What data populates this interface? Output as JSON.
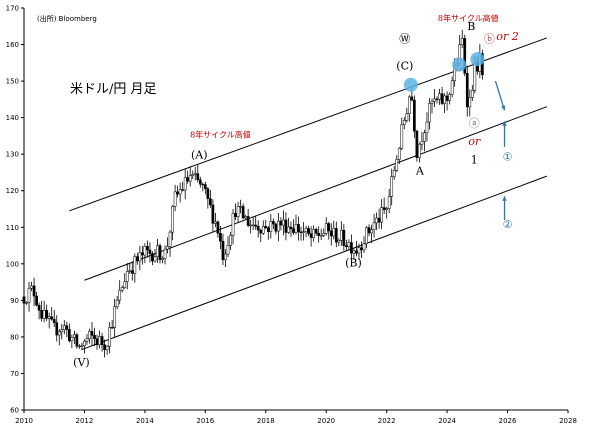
{
  "chart_data": {
    "type": "candlestick",
    "title": "米ドル/円 月足",
    "source": "(出所) Bloomberg",
    "x_range": [
      2010,
      2028
    ],
    "xticks": [
      2010,
      2012,
      2014,
      2016,
      2018,
      2020,
      2022,
      2024,
      2026,
      2028
    ],
    "xtick_labels": [
      "2010",
      "2012",
      "2014",
      "2016",
      "2018",
      "2020",
      "2022",
      "2024",
      "2026",
      "2028"
    ],
    "y_range": [
      60,
      170
    ],
    "yticks": [
      60,
      70,
      80,
      90,
      100,
      110,
      120,
      130,
      140,
      150,
      160,
      170
    ],
    "ytick_labels": [
      "60",
      "70",
      "80",
      "90",
      "100",
      "110",
      "120",
      "130",
      "140",
      "150",
      "160",
      "170"
    ],
    "grid": false,
    "price_anchors": [
      {
        "t": 2010.0,
        "v": 91
      },
      {
        "t": 2010.3,
        "v": 93
      },
      {
        "t": 2010.6,
        "v": 86
      },
      {
        "t": 2011.0,
        "v": 82
      },
      {
        "t": 2011.3,
        "v": 83
      },
      {
        "t": 2011.8,
        "v": 77
      },
      {
        "t": 2012.2,
        "v": 80
      },
      {
        "t": 2012.7,
        "v": 78
      },
      {
        "t": 2013.0,
        "v": 87
      },
      {
        "t": 2013.4,
        "v": 98
      },
      {
        "t": 2014.0,
        "v": 103
      },
      {
        "t": 2014.7,
        "v": 103
      },
      {
        "t": 2015.0,
        "v": 118
      },
      {
        "t": 2015.5,
        "v": 124
      },
      {
        "t": 2015.9,
        "v": 121
      },
      {
        "t": 2016.4,
        "v": 110
      },
      {
        "t": 2016.6,
        "v": 102
      },
      {
        "t": 2017.0,
        "v": 115
      },
      {
        "t": 2017.5,
        "v": 111
      },
      {
        "t": 2018.0,
        "v": 110
      },
      {
        "t": 2018.5,
        "v": 111
      },
      {
        "t": 2019.0,
        "v": 110
      },
      {
        "t": 2019.5,
        "v": 107
      },
      {
        "t": 2020.0,
        "v": 109
      },
      {
        "t": 2020.5,
        "v": 107
      },
      {
        "t": 2021.0,
        "v": 104
      },
      {
        "t": 2021.5,
        "v": 110
      },
      {
        "t": 2022.0,
        "v": 115
      },
      {
        "t": 2022.3,
        "v": 128
      },
      {
        "t": 2022.8,
        "v": 148
      },
      {
        "t": 2023.0,
        "v": 131
      },
      {
        "t": 2023.5,
        "v": 144
      },
      {
        "t": 2024.0,
        "v": 145
      },
      {
        "t": 2024.5,
        "v": 161
      },
      {
        "t": 2024.7,
        "v": 142
      },
      {
        "t": 2024.9,
        "v": 153
      },
      {
        "t": 2025.1,
        "v": 156
      },
      {
        "t": 2025.2,
        "v": 148
      }
    ],
    "channel_lines": [
      {
        "name": "upper",
        "points": [
          [
            2011.5,
            114.5
          ],
          [
            2027.3,
            161.8
          ]
        ]
      },
      {
        "name": "middle",
        "points": [
          [
            2012.0,
            95.5
          ],
          [
            2027.3,
            143
          ]
        ]
      },
      {
        "name": "lower",
        "points": [
          [
            2011.9,
            76.5
          ],
          [
            2027.3,
            124
          ]
        ]
      }
    ],
    "annotations": [
      {
        "text": "8年サイクル高値",
        "t": 2016.5,
        "v": 134.5,
        "color": "#c00000"
      },
      {
        "text": "8年サイクル高値",
        "t": 2024.7,
        "v": 166.5,
        "color": "#c00000"
      },
      {
        "text": "(A)",
        "t": 2015.8,
        "v": 128.8,
        "color": "#000000"
      },
      {
        "text": "(B)",
        "t": 2020.9,
        "v": 99.3,
        "color": "#000000"
      },
      {
        "text": "(C)",
        "t": 2022.6,
        "v": 153.2,
        "color": "#000000"
      },
      {
        "text": "(V)",
        "t": 2011.9,
        "v": 72,
        "color": "#000000"
      },
      {
        "text": "Ⓦ",
        "t": 2022.6,
        "v": 160.5,
        "color": "#000000"
      },
      {
        "text": "A",
        "t": 2023.1,
        "v": 124.4,
        "color": "#000000"
      },
      {
        "text": "B",
        "t": 2024.8,
        "v": 164,
        "color": "#000000"
      },
      {
        "text": "ⓑ",
        "t": 2025.4,
        "v": 160.5,
        "color": "#c0504d"
      },
      {
        "text": "or 2",
        "t": 2026.0,
        "v": 161.2,
        "color": "#c00000"
      },
      {
        "text": "ⓐ",
        "t": 2024.9,
        "v": 137.5,
        "color": "#7f7f7f"
      },
      {
        "text": "or",
        "t": 2024.9,
        "v": 132.5,
        "color": "#c00000"
      },
      {
        "text": "1",
        "t": 2024.9,
        "v": 127.5,
        "color": "#000000"
      },
      {
        "text": "①",
        "t": 2026.0,
        "v": 128.3,
        "color": "#2e75b6"
      },
      {
        "text": "②",
        "t": 2026.0,
        "v": 109.8,
        "color": "#2e75b6"
      }
    ],
    "highlight_points": [
      {
        "t": 2022.8,
        "v": 149
      },
      {
        "t": 2024.4,
        "v": 154.5
      },
      {
        "t": 2025.0,
        "v": 156
      }
    ],
    "projection_arrows": [
      {
        "from": [
          2025.6,
          150
        ],
        "to": [
          2025.9,
          142
        ]
      },
      {
        "from": [
          2025.9,
          132
        ],
        "to": [
          2025.9,
          139
        ]
      },
      {
        "from": [
          2025.9,
          112
        ],
        "to": [
          2025.9,
          118.5
        ]
      }
    ]
  }
}
